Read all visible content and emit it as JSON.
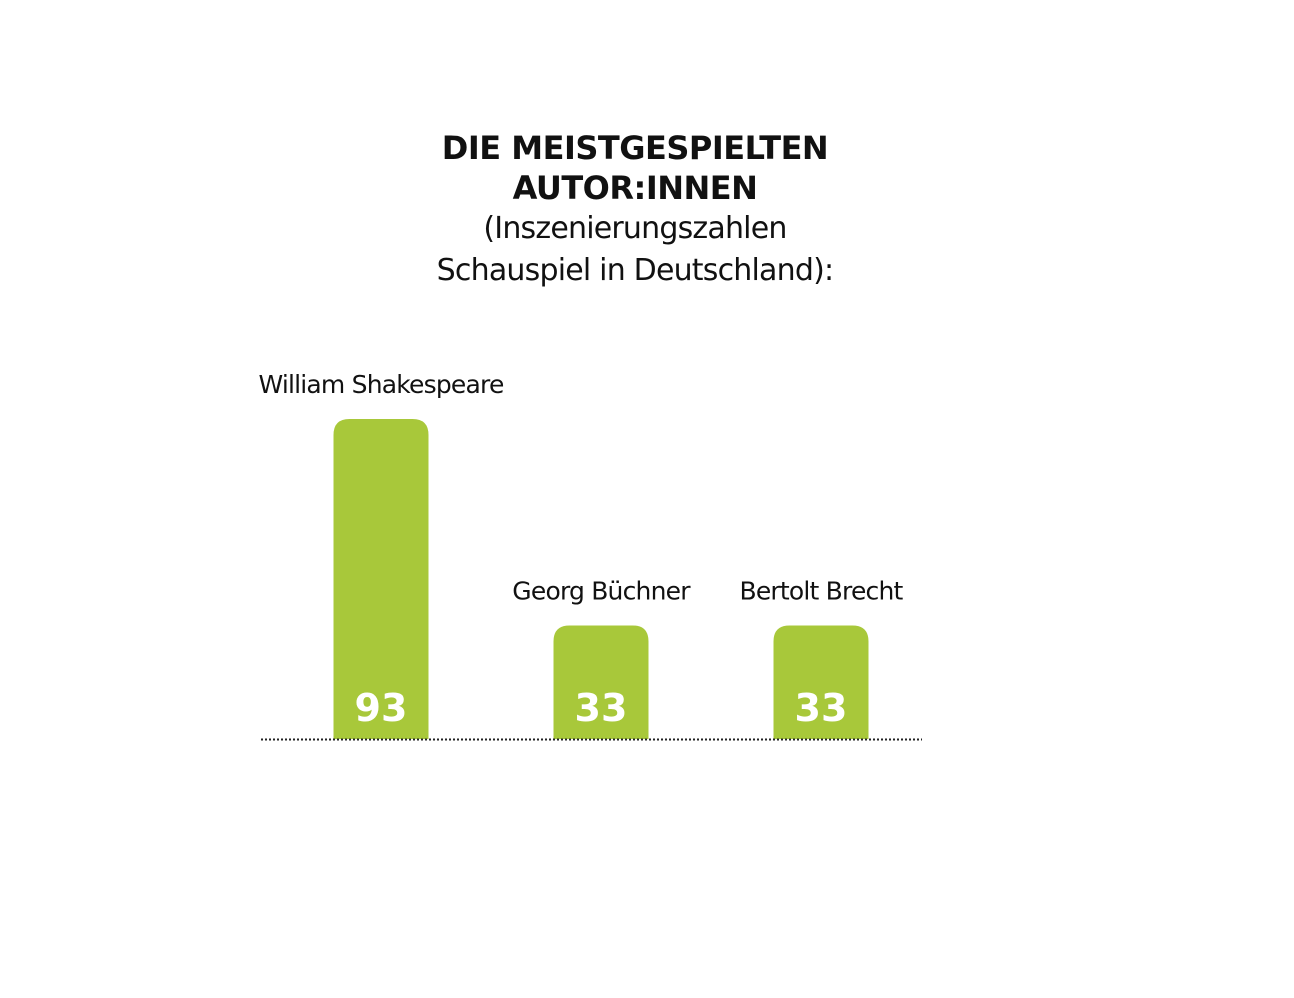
{
  "title": {
    "line1": "DIE MEISTGESPIELTEN",
    "line2": "AUTOR:INNEN",
    "subtitle1": "(Inszenierungszahlen",
    "subtitle2": "Schauspiel in Deutschland):"
  },
  "chart_data": {
    "type": "bar",
    "title": "DIE MEISTGESPIELTEN AUTOR:INNEN (Inszenierungszahlen Schauspiel in Deutschland):",
    "categories": [
      "William Shakespeare",
      "Georg Büchner",
      "Bertolt Brecht"
    ],
    "values": [
      93,
      33,
      33
    ],
    "xlabel": "",
    "ylabel": "",
    "ylim": [
      0,
      93
    ],
    "grid": false,
    "data_labels": true,
    "bar_color": "#a8c83a",
    "label_color": "#ffffff",
    "baseline_style": "dotted"
  }
}
